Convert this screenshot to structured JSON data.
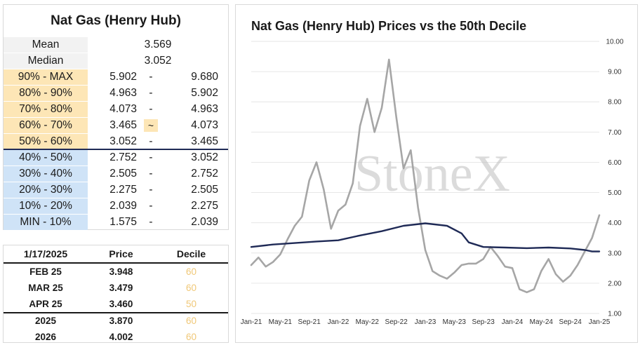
{
  "decile_table": {
    "title": "Nat Gas (Henry Hub)",
    "mean_label": "Mean",
    "mean_value": "3.569",
    "median_label": "Median",
    "median_value": "3.052",
    "rows": [
      {
        "label": "90% - MAX",
        "low": "5.902",
        "sep": "-",
        "high": "9.680",
        "zone": "upper"
      },
      {
        "label": "80% - 90%",
        "low": "4.963",
        "sep": "-",
        "high": "5.902",
        "zone": "upper"
      },
      {
        "label": "70% - 80%",
        "low": "4.073",
        "sep": "-",
        "high": "4.963",
        "zone": "upper"
      },
      {
        "label": "60% - 70%",
        "low": "3.465",
        "sep": "~",
        "high": "4.073",
        "zone": "upper"
      },
      {
        "label": "50% - 60%",
        "low": "3.052",
        "sep": "-",
        "high": "3.465",
        "zone": "upper"
      },
      {
        "label": "40% - 50%",
        "low": "2.752",
        "sep": "-",
        "high": "3.052",
        "zone": "lower"
      },
      {
        "label": "30% - 40%",
        "low": "2.505",
        "sep": "-",
        "high": "2.752",
        "zone": "lower"
      },
      {
        "label": "20% - 30%",
        "low": "2.275",
        "sep": "-",
        "high": "2.505",
        "zone": "lower"
      },
      {
        "label": "10% - 20%",
        "low": "2.039",
        "sep": "-",
        "high": "2.275",
        "zone": "lower"
      },
      {
        "label": "MIN - 10%",
        "low": "1.575",
        "sep": "-",
        "high": "2.039",
        "zone": "lower"
      }
    ]
  },
  "forward_table": {
    "header": {
      "date": "1/17/2025",
      "price": "Price",
      "decile": "Decile"
    },
    "rows": [
      {
        "contract": "FEB 25",
        "price": "3.948",
        "decile": "60"
      },
      {
        "contract": "MAR 25",
        "price": "3.479",
        "decile": "60"
      },
      {
        "contract": "APR 25",
        "price": "3.460",
        "decile": "50"
      },
      {
        "contract": "2025",
        "price": "3.870",
        "decile": "60"
      },
      {
        "contract": "2026",
        "price": "4.002",
        "decile": "60"
      }
    ]
  },
  "chart_data": {
    "type": "line",
    "title": "Nat Gas (Henry Hub) Prices vs the 50th Decile",
    "watermark": "StoneX",
    "xlabel": "",
    "ylabel": "",
    "ylim": [
      1.0,
      10.0
    ],
    "y_ticks": [
      "1.00",
      "2.00",
      "3.00",
      "4.00",
      "5.00",
      "6.00",
      "7.00",
      "8.00",
      "9.00",
      "10.00"
    ],
    "x_ticks": [
      "Jan-21",
      "May-21",
      "Sep-21",
      "Jan-22",
      "May-22",
      "Sep-22",
      "Jan-23",
      "May-23",
      "Sep-23",
      "Jan-24",
      "May-24",
      "Sep-24",
      "Jan-25"
    ],
    "x_range": [
      "2021-01",
      "2025-01"
    ],
    "y_axis_side": "right",
    "grid": "horizontal",
    "series": [
      {
        "color": "#a6a6a6",
        "points": [
          [
            "2021-01",
            2.6
          ],
          [
            "2021-02",
            2.85
          ],
          [
            "2021-03",
            2.55
          ],
          [
            "2021-04",
            2.7
          ],
          [
            "2021-05",
            2.95
          ],
          [
            "2021-06",
            3.45
          ],
          [
            "2021-07",
            3.9
          ],
          [
            "2021-08",
            4.2
          ],
          [
            "2021-09",
            5.4
          ],
          [
            "2021-10",
            6.0
          ],
          [
            "2021-11",
            5.1
          ],
          [
            "2021-12",
            3.8
          ],
          [
            "2022-01",
            4.4
          ],
          [
            "2022-02",
            4.6
          ],
          [
            "2022-03",
            5.3
          ],
          [
            "2022-04",
            7.2
          ],
          [
            "2022-05",
            8.1
          ],
          [
            "2022-06",
            7.0
          ],
          [
            "2022-07",
            7.8
          ],
          [
            "2022-08",
            9.4
          ],
          [
            "2022-09",
            7.5
          ],
          [
            "2022-10",
            5.8
          ],
          [
            "2022-11",
            6.4
          ],
          [
            "2022-12",
            4.5
          ],
          [
            "2023-01",
            3.1
          ],
          [
            "2023-02",
            2.4
          ],
          [
            "2023-03",
            2.25
          ],
          [
            "2023-04",
            2.15
          ],
          [
            "2023-05",
            2.35
          ],
          [
            "2023-06",
            2.6
          ],
          [
            "2023-07",
            2.65
          ],
          [
            "2023-08",
            2.65
          ],
          [
            "2023-09",
            2.8
          ],
          [
            "2023-10",
            3.2
          ],
          [
            "2023-11",
            2.9
          ],
          [
            "2023-12",
            2.55
          ],
          [
            "2024-01",
            2.5
          ],
          [
            "2024-02",
            1.8
          ],
          [
            "2024-03",
            1.7
          ],
          [
            "2024-04",
            1.8
          ],
          [
            "2024-05",
            2.4
          ],
          [
            "2024-06",
            2.8
          ],
          [
            "2024-07",
            2.3
          ],
          [
            "2024-08",
            2.05
          ],
          [
            "2024-09",
            2.25
          ],
          [
            "2024-10",
            2.6
          ],
          [
            "2024-11",
            3.05
          ],
          [
            "2024-12",
            3.5
          ],
          [
            "2025-01",
            4.25
          ]
        ]
      },
      {
        "color": "#1f2a56",
        "points": [
          [
            "2021-01",
            3.2
          ],
          [
            "2021-04",
            3.28
          ],
          [
            "2021-07",
            3.33
          ],
          [
            "2021-10",
            3.38
          ],
          [
            "2022-01",
            3.42
          ],
          [
            "2022-04",
            3.58
          ],
          [
            "2022-07",
            3.72
          ],
          [
            "2022-10",
            3.9
          ],
          [
            "2023-01",
            3.98
          ],
          [
            "2023-04",
            3.9
          ],
          [
            "2023-06",
            3.65
          ],
          [
            "2023-07",
            3.35
          ],
          [
            "2023-09",
            3.2
          ],
          [
            "2023-12",
            3.18
          ],
          [
            "2024-03",
            3.16
          ],
          [
            "2024-06",
            3.18
          ],
          [
            "2024-09",
            3.15
          ],
          [
            "2024-11",
            3.1
          ],
          [
            "2024-12",
            3.05
          ],
          [
            "2025-01",
            3.05
          ]
        ]
      }
    ]
  }
}
